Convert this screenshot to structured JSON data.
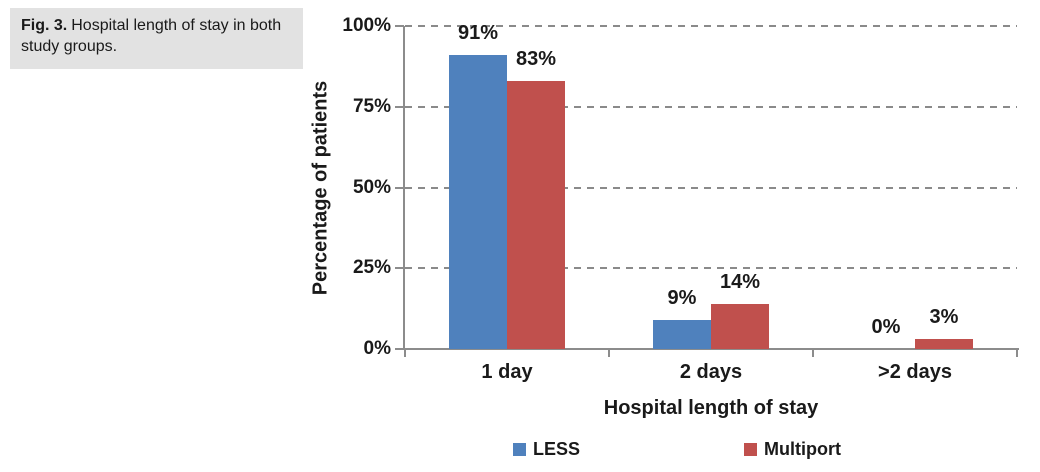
{
  "caption": {
    "label": "Fig. 3.",
    "text": "Hospital length of stay in both study groups."
  },
  "chart_data": {
    "type": "bar",
    "title": "",
    "categories": [
      "1 day",
      "2 days",
      ">2 days"
    ],
    "series": [
      {
        "name": "LESS",
        "color": "#4f81bd",
        "values": [
          91,
          9,
          0
        ],
        "value_labels": [
          "91%",
          "9%",
          "0%"
        ]
      },
      {
        "name": "Multiport",
        "color": "#c0504d",
        "values": [
          83,
          14,
          3
        ],
        "value_labels": [
          "83%",
          "14%",
          "3%"
        ]
      }
    ],
    "xlabel": "Hospital length of stay",
    "ylabel": "Percentage of patients",
    "y_ticks": [
      "100%",
      "75%",
      "50%",
      "25%",
      "0%"
    ],
    "ylim": [
      0,
      100
    ],
    "grid": "horizontal-dashed",
    "legend_position": "bottom",
    "colors": {
      "bar_less": "#4f81bd",
      "bar_multiport": "#c0504d",
      "gridline": "#8a8a8a",
      "axis": "#8c8c8c",
      "text": "#1a1a1a",
      "caption_bg": "#e2e2e2"
    }
  }
}
